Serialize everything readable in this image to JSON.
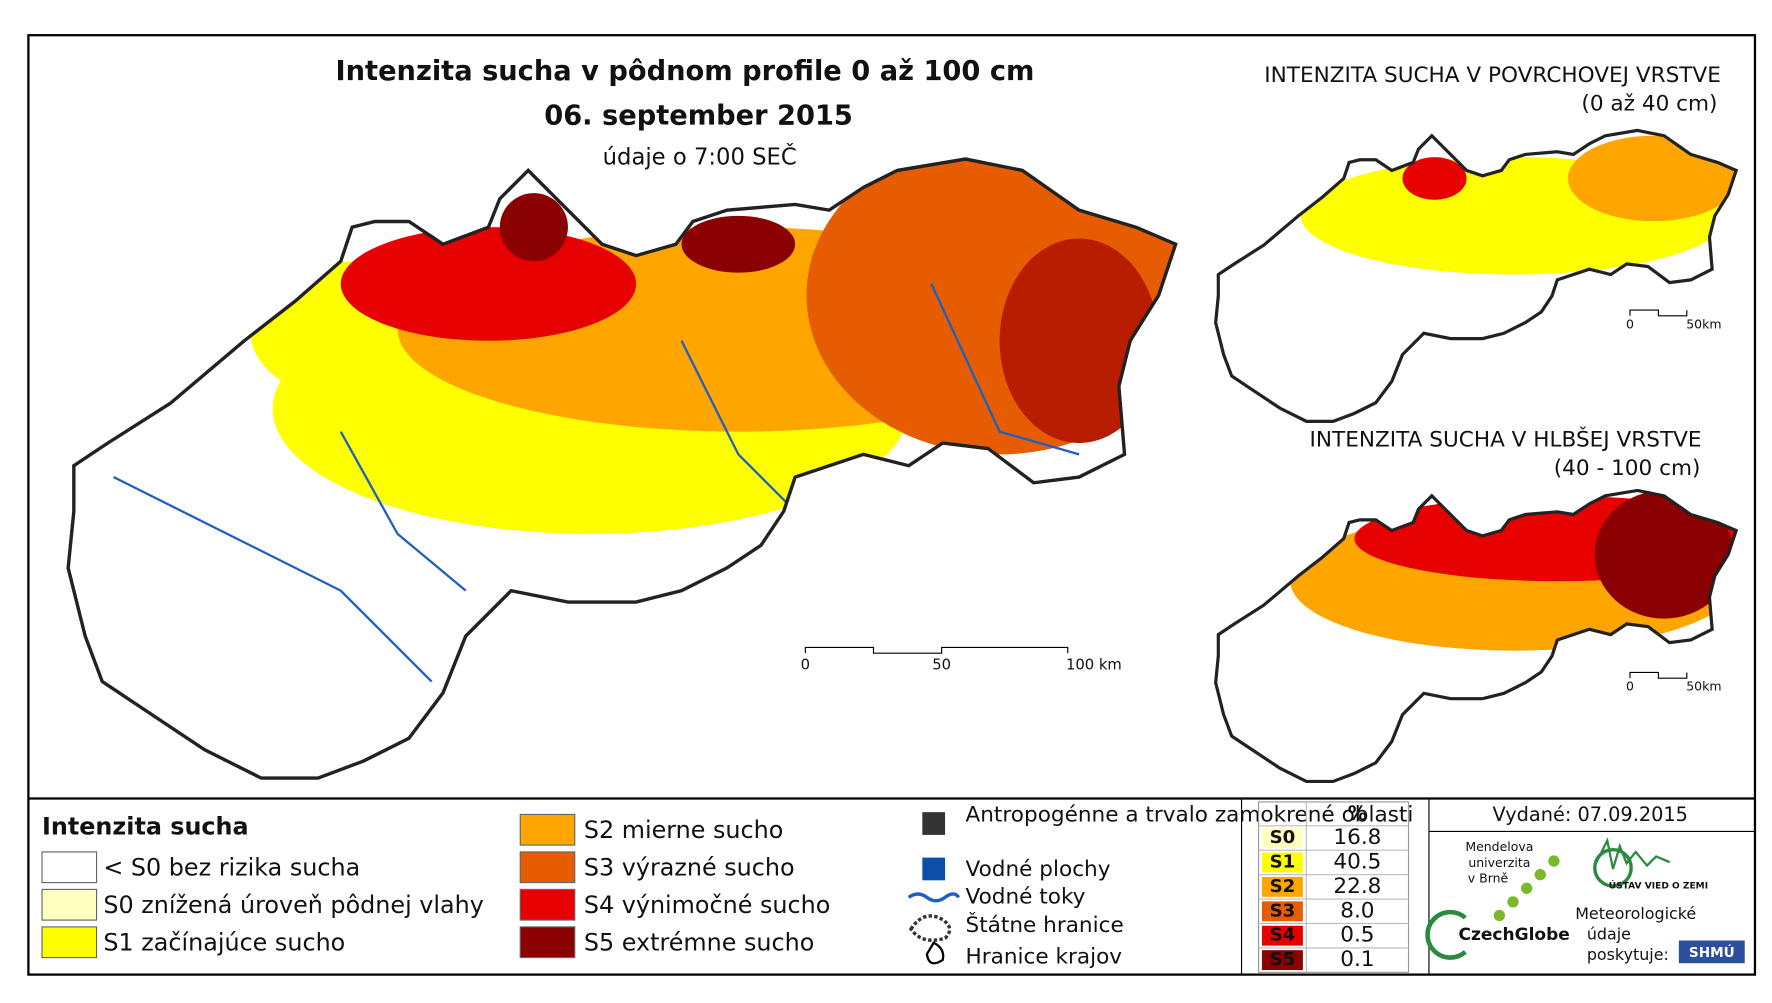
{
  "main_map": {
    "title": "Intenzita sucha v pôdnom profile 0 až 100 cm",
    "date": "06. september 2015",
    "time": "údaje o 7:00 SEČ",
    "scale": [
      "0",
      "50",
      "100 km"
    ]
  },
  "inset_surface": {
    "title": "INTENZITA SUCHA V POVRCHOVEJ VRSTVE",
    "subtitle": "(0 až 40 cm)",
    "scale": [
      "0",
      "50km"
    ]
  },
  "inset_deep": {
    "title": "INTENZITA SUCHA V HLBŠEJ VRSTVE",
    "subtitle": "(40 - 100 cm)",
    "scale": [
      "0",
      "50km"
    ]
  },
  "legend": {
    "title": "Intenzita sucha",
    "classes": [
      {
        "label": "< S0 bez rizika sucha",
        "color": "#ffffff"
      },
      {
        "label": "S0 znížená úroveň pôdnej vlahy",
        "color": "#ffffc0"
      },
      {
        "label": "S1 začínajúce sucho",
        "color": "#ffff00"
      },
      {
        "label": "S2 mierne sucho",
        "color": "#ffa500"
      },
      {
        "label": "S3 výrazné sucho",
        "color": "#e65c00"
      },
      {
        "label": "S4 výnimočné sucho",
        "color": "#e60000"
      },
      {
        "label": "S5 extrémne sucho",
        "color": "#8b0000"
      }
    ],
    "other": [
      "Antropogénne a trvalo zamokrené oblasti",
      "Vodné plochy",
      "Vodné toky",
      "Štátne hranice",
      "Hranice krajov"
    ]
  },
  "table": {
    "header": "%",
    "rows": [
      [
        "S0",
        "16.8"
      ],
      [
        "S1",
        "40.5"
      ],
      [
        "S2",
        "22.8"
      ],
      [
        "S3",
        "8.0"
      ],
      [
        "S4",
        "0.5"
      ],
      [
        "S5",
        "0.1"
      ]
    ]
  },
  "issued": "Vydané: 07.09.2015",
  "logos": {
    "mendel": [
      "Mendelova",
      "univerzita",
      "v Brně"
    ],
    "czechglobe": "CzechGlobe",
    "ustav": "ÚSTAV VIED O ZEMI",
    "meteo": [
      "Meteorologické",
      "údaje",
      "poskytuje:"
    ],
    "shmu": "SHMÚ"
  }
}
